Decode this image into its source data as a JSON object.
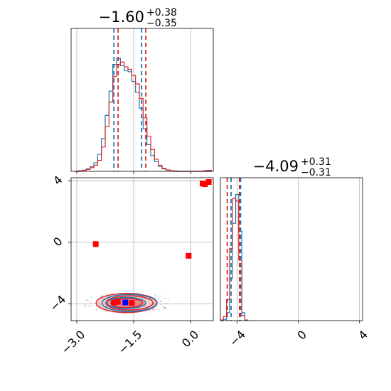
{
  "chart_data": [
    {
      "panel": "marginal-x",
      "type": "histogram",
      "title": {
        "main": "−1.60",
        "sup": "+0.38",
        "sub": "−0.35"
      },
      "xlim": [
        -3.15,
        0.6
      ],
      "grid": true,
      "vlines": {
        "blue": [
          -2.02,
          -1.29
        ],
        "red": [
          -1.91,
          -1.18
        ]
      },
      "series": [
        {
          "color": "#1f77b4",
          "x": [
            -3.0,
            -2.9,
            -2.8,
            -2.7,
            -2.6,
            -2.5,
            -2.4,
            -2.3,
            -2.2,
            -2.1,
            -2.0,
            -1.9,
            -1.8,
            -1.7,
            -1.6,
            -1.5,
            -1.4,
            -1.3,
            -1.2,
            -1.1,
            -1.0,
            -0.9,
            -0.8,
            -0.7,
            -0.6,
            -0.5,
            -0.4,
            -0.3,
            -0.2,
            -0.1,
            0.0,
            0.1,
            0.2,
            0.3,
            0.4,
            0.5
          ],
          "values": [
            0,
            0.005,
            0.01,
            0.02,
            0.04,
            0.07,
            0.14,
            0.27,
            0.46,
            0.66,
            0.88,
            0.93,
            0.87,
            0.83,
            0.82,
            0.74,
            0.65,
            0.52,
            0.35,
            0.22,
            0.13,
            0.08,
            0.04,
            0.02,
            0.01,
            0.005,
            0,
            0,
            0,
            0,
            0,
            0,
            0,
            0,
            0,
            0
          ]
        },
        {
          "color": "#d62728",
          "x": [
            -3.0,
            -2.9,
            -2.8,
            -2.7,
            -2.6,
            -2.5,
            -2.4,
            -2.3,
            -2.2,
            -2.1,
            -2.0,
            -1.9,
            -1.8,
            -1.7,
            -1.6,
            -1.5,
            -1.4,
            -1.3,
            -1.2,
            -1.1,
            -1.0,
            -0.9,
            -0.8,
            -0.7,
            -0.6,
            -0.5,
            -0.4,
            -0.3,
            -0.2,
            -0.1,
            0.0,
            0.1,
            0.2,
            0.3,
            0.4,
            0.5
          ],
          "values": [
            0,
            0.005,
            0.008,
            0.015,
            0.03,
            0.05,
            0.09,
            0.2,
            0.37,
            0.57,
            0.78,
            0.88,
            0.9,
            0.86,
            0.84,
            0.79,
            0.72,
            0.6,
            0.44,
            0.29,
            0.18,
            0.1,
            0.05,
            0.025,
            0.012,
            0.005,
            0.003,
            0,
            0,
            0,
            0,
            0,
            0,
            0,
            0.005,
            0.008
          ]
        }
      ]
    },
    {
      "panel": "joint",
      "type": "scatter",
      "xlim": [
        -3.15,
        0.6
      ],
      "ylim": [
        -5.1,
        4.2
      ],
      "grid": true,
      "contour_center": [
        -1.65,
        -3.95
      ],
      "contours": [
        {
          "color": "#d62728",
          "rx": 0.8,
          "ry": 0.62
        },
        {
          "color": "#d62728",
          "rx": 0.62,
          "ry": 0.46
        },
        {
          "color": "#d62728",
          "rx": 0.42,
          "ry": 0.3
        },
        {
          "color": "#1f77b4",
          "rx": 0.72,
          "ry": 0.55
        },
        {
          "color": "#1f77b4",
          "rx": 0.5,
          "ry": 0.36
        }
      ],
      "markers": [
        {
          "x": 0.32,
          "y": 3.82,
          "color": "#ff0000"
        },
        {
          "x": 0.38,
          "y": 3.78,
          "color": "#ff0000"
        },
        {
          "x": 0.48,
          "y": 3.92,
          "color": "#ff0000"
        },
        {
          "x": -2.5,
          "y": -0.12,
          "color": "#ff0000"
        },
        {
          "x": -0.05,
          "y": -0.88,
          "color": "#ff0000"
        },
        {
          "x": -2.02,
          "y": -3.92,
          "color": "#ff0000"
        },
        {
          "x": -1.92,
          "y": -3.88,
          "color": "#ff0000"
        },
        {
          "x": -1.55,
          "y": -3.95,
          "color": "#ff0000"
        },
        {
          "x": -1.72,
          "y": -3.92,
          "color": "#0000ff"
        }
      ]
    },
    {
      "panel": "marginal-y",
      "type": "histogram",
      "title": {
        "main": "−4.09",
        "sup": "+0.31",
        "sub": "−0.31"
      },
      "xlim": [
        -5.1,
        4.2
      ],
      "grid": true,
      "vlines": {
        "blue": [
          -4.4,
          -3.78
        ],
        "red": [
          -4.65,
          -3.85
        ]
      },
      "series": [
        {
          "color": "#1f77b4",
          "x": [
            -5.0,
            -4.8,
            -4.6,
            -4.4,
            -4.2,
            -4.0,
            -3.8,
            -3.6,
            -3.4
          ],
          "values": [
            0,
            0.01,
            0.06,
            0.32,
            0.74,
            0.96,
            0.68,
            0.06,
            0.005
          ]
        },
        {
          "color": "#d62728",
          "x": [
            -5.0,
            -4.8,
            -4.6,
            -4.4,
            -4.2,
            -4.0,
            -3.8,
            -3.6,
            -3.4
          ],
          "values": [
            0.005,
            0.03,
            0.16,
            0.55,
            0.93,
            0.91,
            0.46,
            0.04,
            0.004
          ]
        }
      ]
    }
  ]
}
